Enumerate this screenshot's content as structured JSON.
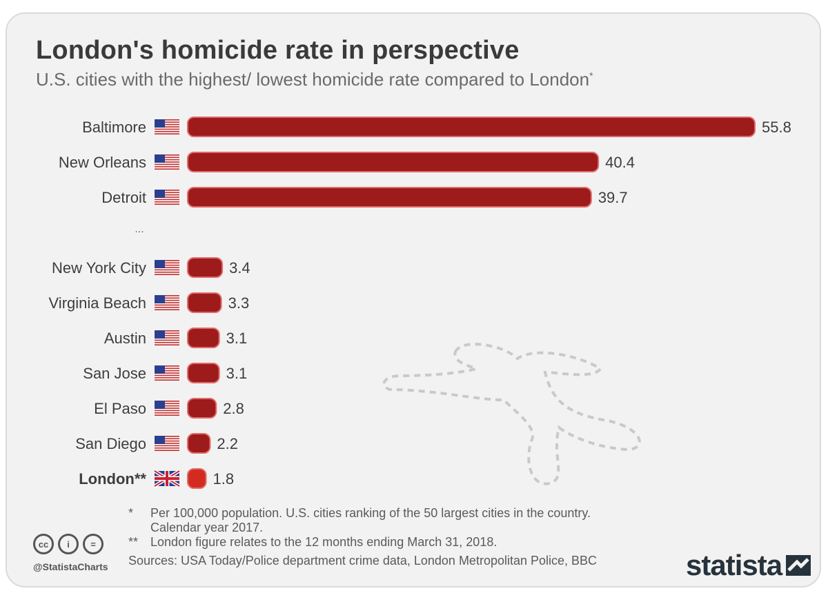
{
  "title": "London's homicide rate in perspective",
  "subtitle": "U.S. cities with the highest/ lowest homicide rate compared to London",
  "subtitle_marker": "*",
  "ellipsis": "...",
  "colors": {
    "bar": "#9e1b1b",
    "bar_outline": "#e06a6a",
    "highlight_bar": "#d42b20",
    "label": "#3d3d3d"
  },
  "chart_data": {
    "type": "bar",
    "orientation": "horizontal",
    "title": "London's homicide rate in perspective",
    "subtitle": "U.S. cities with the highest/ lowest homicide rate compared to London*",
    "gap_after_index": 2,
    "xlim": [
      0,
      55.8
    ],
    "categories": [
      "Baltimore",
      "New Orleans",
      "Detroit",
      "New York City",
      "Virginia Beach",
      "Austin",
      "San Jose",
      "El Paso",
      "San Diego",
      "London**"
    ],
    "flags": [
      "us-flag-icon",
      "us-flag-icon",
      "us-flag-icon",
      "us-flag-icon",
      "us-flag-icon",
      "us-flag-icon",
      "us-flag-icon",
      "us-flag-icon",
      "us-flag-icon",
      "uk-flag-icon"
    ],
    "values": [
      55.8,
      40.4,
      39.7,
      3.4,
      3.3,
      3.1,
      3.1,
      2.8,
      2.2,
      1.8
    ],
    "value_labels": [
      "55.8",
      "40.4",
      "39.7",
      "3.4",
      "3.3",
      "3.1",
      "3.1",
      "2.8",
      "2.2",
      "1.8"
    ],
    "highlight": "London**"
  },
  "footnotes": [
    {
      "mark": "*",
      "text": "Per 100,000 population. U.S. cities ranking of the 50 largest cities in the country.\nCalendar year 2017."
    },
    {
      "mark": "**",
      "text": "London figure relates to the 12 months ending March 31, 2018."
    }
  ],
  "sources": "Sources: USA Today/Police department crime data, London Metropolitan Police, BBC",
  "license_icons": [
    "cc-icon",
    "by-icon",
    "nd-icon"
  ],
  "license_labels": [
    "cc",
    "i",
    "="
  ],
  "handle": "@StatistaCharts",
  "logo": "statista"
}
